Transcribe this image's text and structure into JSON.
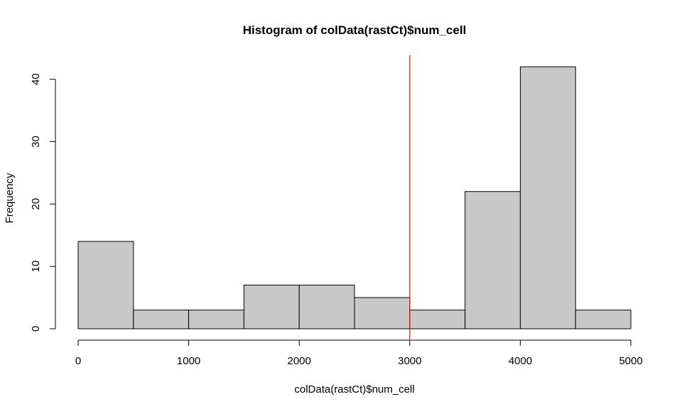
{
  "chart_data": {
    "type": "bar",
    "title": "Histogram of colData(rastCt)$num_cell",
    "xlabel": "colData(rastCt)$num_cell",
    "ylabel": "Frequency",
    "bins": [
      {
        "start": 0,
        "end": 500,
        "count": 14
      },
      {
        "start": 500,
        "end": 1000,
        "count": 3
      },
      {
        "start": 1000,
        "end": 1500,
        "count": 3
      },
      {
        "start": 1500,
        "end": 2000,
        "count": 7
      },
      {
        "start": 2000,
        "end": 2500,
        "count": 7
      },
      {
        "start": 2500,
        "end": 3000,
        "count": 5
      },
      {
        "start": 3000,
        "end": 3500,
        "count": 3
      },
      {
        "start": 3500,
        "end": 4000,
        "count": 22
      },
      {
        "start": 4000,
        "end": 4500,
        "count": 42
      },
      {
        "start": 4500,
        "end": 5000,
        "count": 3
      }
    ],
    "xlim": [
      0,
      5000
    ],
    "ylim": [
      0,
      42
    ],
    "x_ticks": [
      "0",
      "1000",
      "2000",
      "3000",
      "4000",
      "5000"
    ],
    "y_ticks": [
      "0",
      "10",
      "20",
      "30",
      "40"
    ],
    "vline": {
      "x": 3000,
      "color": "#ff0000"
    },
    "bar_color": "#c8c8c8",
    "grid": false,
    "legend": "none"
  }
}
